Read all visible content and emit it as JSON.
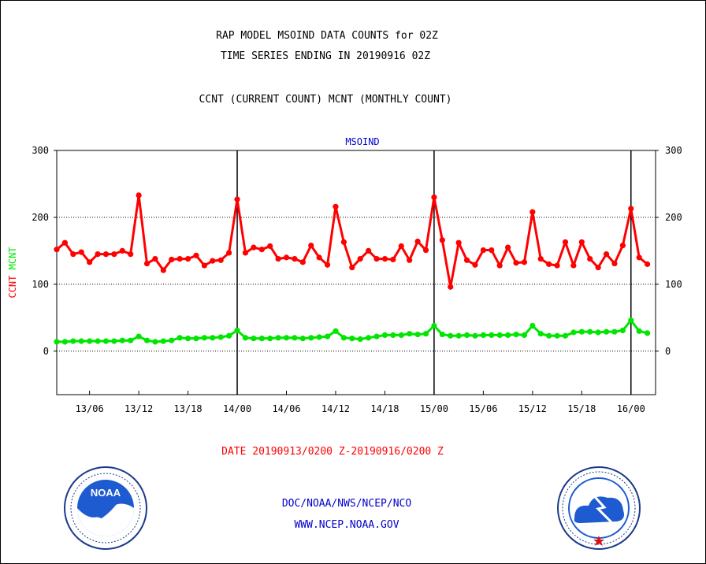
{
  "header": {
    "line1": "RAP MODEL MSOIND DATA COUNTS for 02Z",
    "line2": "TIME SERIES ENDING IN 20190916 02Z",
    "line3": "CCNT (CURRENT COUNT) MCNT (MONTHLY COUNT)"
  },
  "footer": {
    "date_range": "DATE 20190913/0200 Z-20190916/0200 Z",
    "org": "DOC/NOAA/NWS/NCEP/NCO",
    "url": "WWW.NCEP.NOAA.GOV"
  },
  "colors": {
    "ccnt": "#ff0000",
    "mcnt": "#00e600",
    "title": "#0000cc",
    "frame": "#000000"
  },
  "logos": {
    "left": "noaa-logo",
    "right": "nws-logo"
  },
  "chart_data": {
    "type": "line",
    "title": "MSOIND",
    "ylabel_parts": [
      {
        "text": "CCNT",
        "color": "#ff0000"
      },
      {
        "text": "MCNT",
        "color": "#00e600"
      }
    ],
    "ylim": [
      -65,
      300
    ],
    "yticks": [
      0,
      100,
      200,
      300
    ],
    "xlim": [
      0,
      73
    ],
    "xticks": [
      {
        "x": 4,
        "label": "13/06"
      },
      {
        "x": 10,
        "label": "13/12"
      },
      {
        "x": 16,
        "label": "13/18"
      },
      {
        "x": 22,
        "label": "14/00"
      },
      {
        "x": 28,
        "label": "14/06"
      },
      {
        "x": 34,
        "label": "14/12"
      },
      {
        "x": 40,
        "label": "14/18"
      },
      {
        "x": 46,
        "label": "15/00"
      },
      {
        "x": 52,
        "label": "15/06"
      },
      {
        "x": 58,
        "label": "15/12"
      },
      {
        "x": 64,
        "label": "15/18"
      },
      {
        "x": 70,
        "label": "16/00"
      }
    ],
    "day_lines": [
      22,
      46,
      70
    ],
    "grid_y": [
      0,
      100,
      200
    ],
    "series": [
      {
        "name": "CCNT",
        "color": "#ff0000",
        "values": [
          152,
          162,
          145,
          148,
          133,
          145,
          145,
          145,
          150,
          145,
          233,
          131,
          138,
          121,
          137,
          138,
          138,
          143,
          128,
          135,
          136,
          147,
          227,
          147,
          155,
          152,
          157,
          138,
          140,
          138,
          133,
          158,
          140,
          129,
          216,
          163,
          125,
          138,
          150,
          138,
          138,
          137,
          157,
          136,
          164,
          151,
          230,
          166,
          96,
          162,
          136,
          129,
          151,
          151,
          128,
          155,
          132,
          133,
          208,
          138,
          130,
          128,
          163,
          128,
          163,
          138,
          125,
          145,
          131,
          158,
          213,
          140,
          130
        ]
      },
      {
        "name": "MCNT",
        "color": "#00e600",
        "values": [
          14,
          14,
          15,
          15,
          15,
          15,
          15,
          15,
          16,
          16,
          22,
          16,
          14,
          15,
          16,
          20,
          19,
          19,
          20,
          20,
          21,
          23,
          31,
          20,
          19,
          19,
          19,
          20,
          20,
          20,
          19,
          20,
          21,
          22,
          30,
          20,
          19,
          18,
          20,
          22,
          24,
          24,
          24,
          26,
          25,
          26,
          38,
          25,
          23,
          23,
          24,
          23,
          24,
          24,
          24,
          24,
          25,
          24,
          38,
          26,
          23,
          23,
          23,
          28,
          29,
          29,
          28,
          29,
          29,
          31,
          46,
          30,
          27
        ]
      }
    ]
  }
}
